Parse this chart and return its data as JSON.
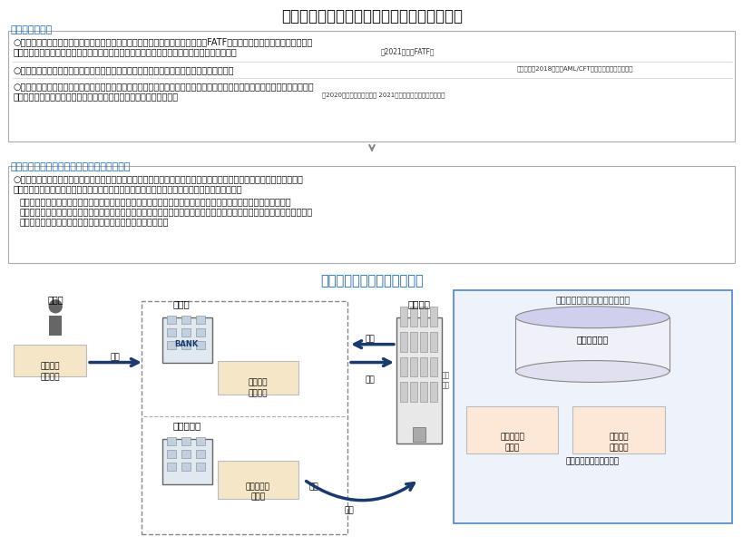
{
  "title": "共同機関設立の背景と適正な業務運営の確保",
  "sec1_label": "【検討の背景】",
  "sec2_label": "【共同機関に対する業規制の基本的考え方】",
  "diagram_title": "共同機関の業務（イメージ）",
  "b1a": "○　金融のデジタル化の進展やマネロンの手口の巧妙化等を踏まえ、国際的にもFATFにおいて、より高い水準での対応が",
  "b1b": "　　求められており、銀行等におけるマネロン等対策の実効性向上が喫緊の課題となっている",
  "b1n": "（2021年８月FATF）",
  "b2": "○　こうした状況を踏まえ、銀行業界では、マネロン等対策の高度化に向けた取組みを実施",
  "b2n": "（全銀協：2018年度～AML/CFT態勢高度化研究会設置）",
  "b3a": "○　足元、全銀協において、中小規模の銀行等における単独対応が困難との声も踏まえ、マネロン等対策業務の共同化による",
  "b3b": "　　高度化・効率化（共同機関の設立）に向け、具体的な検討が加速",
  "b3n": "（2020年度：実証実験実施 2021年度：タスクフォース設置）",
  "r1a": "○　共同機関が多数の銀行等から委託を受け、その業務の規模が大きくなる場合、以下の点を踏まえ、共同機関に対する",
  "r1b": "　　業規制を導入（当局による直接の検査・監督等を及ぼすことで、その業務運営の質を確保）",
  "rs1": "・　銀行等による共同機関に対する管理・監督に係る責任の所在が不明瞭となり、その実効性が上がらないおそれ",
  "rs2": "・　共同機関の業務は、マネロン等対策業務の中核的な部分を行うものであり、共同機関の業務が適切に行われなければ、",
  "rs3": "　　日本の金融システムに与える影響が大きいものとなりうる",
  "sec_color": "#1a6ab8",
  "title_color": "#111111",
  "diag_title_color": "#1a6ab8",
  "bg": "#ffffff",
  "arrow_color": "#1a3a6e",
  "box_edge": "#aaaaaa",
  "dashed_edge": "#888888",
  "sys_edge": "#4a86c8",
  "sys_face": "#eef3fb",
  "doc_face": "#f5e6c8",
  "doc2_face": "#fde8d8",
  "db_face": "#f0f0f8",
  "bldg_face": "#dddddd"
}
